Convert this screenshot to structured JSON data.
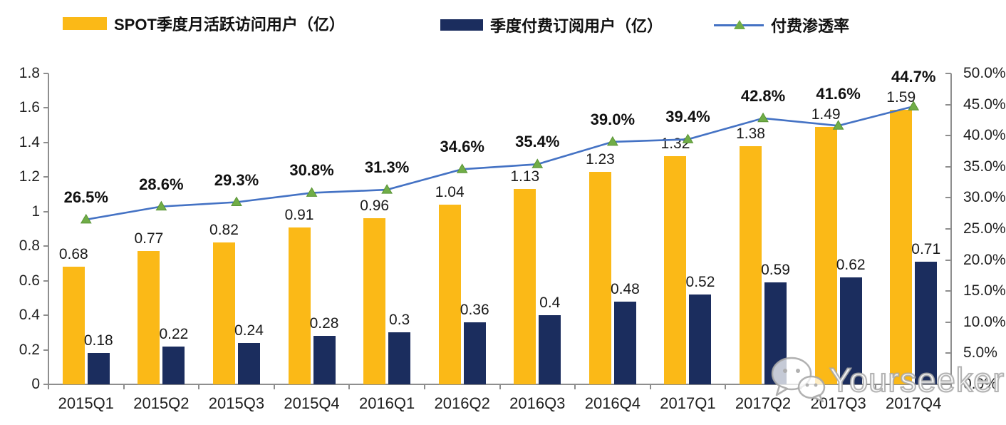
{
  "legend": {
    "items": [
      {
        "label": "SPOT季度月活跃访问用户（亿）",
        "swatch": "bar",
        "color": "#FBB917"
      },
      {
        "label": "季度付费订阅用户（亿）",
        "swatch": "bar",
        "color": "#1B2D5E"
      },
      {
        "label": "付费渗透率",
        "swatch": "line-triangle",
        "line_color": "#4472C4",
        "marker_color": "#70AD47"
      }
    ]
  },
  "watermark": {
    "text": "Yourseeker",
    "icon": "wechat-icon"
  },
  "chart_data": {
    "type": "bar+line",
    "title": "",
    "categories": [
      "2015Q1",
      "2015Q2",
      "2015Q3",
      "2015Q4",
      "2016Q1",
      "2016Q2",
      "2016Q3",
      "2016Q4",
      "2017Q1",
      "2017Q2",
      "2017Q3",
      "2017Q4"
    ],
    "series": [
      {
        "name": "SPOT季度月活跃访问用户（亿）",
        "type": "bar",
        "axis": "left",
        "color": "#FBB917",
        "values": [
          0.68,
          0.77,
          0.82,
          0.91,
          0.96,
          1.04,
          1.13,
          1.23,
          1.32,
          1.38,
          1.49,
          1.59
        ],
        "labels": [
          "0.68",
          "0.77",
          "0.82",
          "0.91",
          "0.96",
          "1.04",
          "1.13",
          "1.23",
          "1.32",
          "1.38",
          "1.49",
          "1.59"
        ]
      },
      {
        "name": "季度付费订阅用户（亿）",
        "type": "bar",
        "axis": "left",
        "color": "#1B2D5E",
        "values": [
          0.18,
          0.22,
          0.24,
          0.28,
          0.3,
          0.36,
          0.4,
          0.48,
          0.52,
          0.59,
          0.62,
          0.71
        ],
        "labels": [
          "0.18",
          "0.22",
          "0.24",
          "0.28",
          "0.3",
          "0.36",
          "0.4",
          "0.48",
          "0.52",
          "0.59",
          "0.62",
          "0.71"
        ]
      },
      {
        "name": "付费渗透率",
        "type": "line",
        "axis": "right",
        "color": "#4472C4",
        "marker": "triangle",
        "marker_color": "#70AD47",
        "values": [
          26.5,
          28.6,
          29.3,
          30.8,
          31.3,
          34.6,
          35.4,
          39.0,
          39.4,
          42.8,
          41.6,
          44.7
        ],
        "labels": [
          "26.5%",
          "28.6%",
          "29.3%",
          "30.8%",
          "31.3%",
          "34.6%",
          "35.4%",
          "39.0%",
          "39.4%",
          "42.8%",
          "41.6%",
          "44.7%"
        ]
      }
    ],
    "left_axis": {
      "min": 0,
      "max": 1.8,
      "step": 0.2,
      "ticks": [
        "0",
        "0.2",
        "0.4",
        "0.6",
        "0.8",
        "1",
        "1.2",
        "1.4",
        "1.6",
        "1.8"
      ]
    },
    "right_axis": {
      "min": 0,
      "max": 50,
      "step": 5,
      "ticks": [
        "0.0%",
        "5.0%",
        "10.0%",
        "15.0%",
        "20.0%",
        "25.0%",
        "30.0%",
        "35.0%",
        "40.0%",
        "45.0%",
        "50.0%"
      ]
    },
    "grid": false,
    "legend_position": "top"
  }
}
